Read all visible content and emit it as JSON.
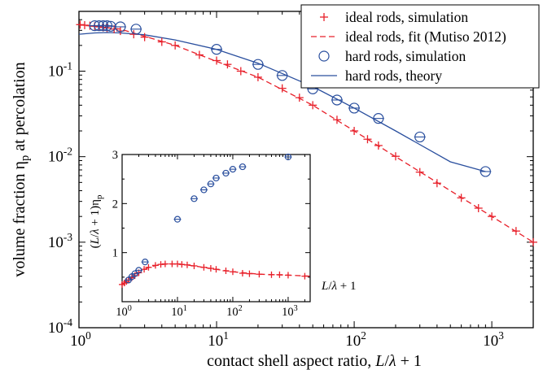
{
  "colors": {
    "ideal": "#e8202a",
    "hard": "#2a4f9e",
    "axis": "#000000"
  },
  "chart_data": [
    {
      "type": "scatter",
      "role": "main",
      "xscale": "log",
      "yscale": "log",
      "xlim": [
        1,
        2000
      ],
      "ylim": [
        0.0001,
        0.5
      ],
      "xlabel": "contact shell aspect ratio, L/λ + 1",
      "ylabel": "volume fraction ηp at percolation",
      "xticks": [
        {
          "value": 1,
          "base": "10",
          "exp": "0"
        },
        {
          "value": 10,
          "base": "10",
          "exp": "1"
        },
        {
          "value": 100,
          "base": "10",
          "exp": "2"
        },
        {
          "value": 1000,
          "base": "10",
          "exp": "3"
        }
      ],
      "yticks": [
        {
          "value": 0.0001,
          "base": "10",
          "exp": "-4"
        },
        {
          "value": 0.001,
          "base": "10",
          "exp": "-3"
        },
        {
          "value": 0.01,
          "base": "10",
          "exp": "-2"
        },
        {
          "value": 0.1,
          "base": "10",
          "exp": "-1"
        }
      ],
      "legend_position": "top-right",
      "series": [
        {
          "name": "ideal rods, simulation",
          "marker": "plus",
          "color": "#e8202a",
          "points": [
            [
              1.02,
              0.35
            ],
            [
              1.1,
              0.345
            ],
            [
              1.2,
              0.34
            ],
            [
              1.3,
              0.335
            ],
            [
              1.4,
              0.33
            ],
            [
              1.5,
              0.325
            ],
            [
              1.6,
              0.32
            ],
            [
              1.8,
              0.31
            ],
            [
              2.0,
              0.295
            ],
            [
              2.5,
              0.27
            ],
            [
              3.0,
              0.25
            ],
            [
              4.0,
              0.22
            ],
            [
              5.0,
              0.2
            ],
            [
              7.5,
              0.155
            ],
            [
              10,
              0.133
            ],
            [
              12,
              0.12
            ],
            [
              15,
              0.1
            ],
            [
              20,
              0.085
            ],
            [
              30,
              0.063
            ],
            [
              40,
              0.049
            ],
            [
              50,
              0.04
            ],
            [
              75,
              0.027
            ],
            [
              100,
              0.02
            ],
            [
              125,
              0.016
            ],
            [
              150,
              0.0135
            ],
            [
              200,
              0.0101
            ],
            [
              300,
              0.0066
            ],
            [
              400,
              0.0049
            ],
            [
              600,
              0.0033
            ],
            [
              800,
              0.0025
            ],
            [
              1000,
              0.002
            ],
            [
              1500,
              0.00135
            ],
            [
              2000,
              0.001
            ]
          ]
        },
        {
          "name": "ideal rods, fit (Mutiso 2012)",
          "line": "dashed",
          "color": "#e8202a",
          "points": [
            [
              1,
              0.35
            ],
            [
              2,
              0.31
            ],
            [
              5,
              0.2
            ],
            [
              10,
              0.13
            ],
            [
              20,
              0.085
            ],
            [
              50,
              0.04
            ],
            [
              100,
              0.02
            ],
            [
              200,
              0.01
            ],
            [
              500,
              0.004
            ],
            [
              1000,
              0.002
            ],
            [
              2000,
              0.001
            ]
          ]
        },
        {
          "name": "hard rods, simulation",
          "marker": "circle",
          "color": "#2a4f9e",
          "points": [
            [
              1.3,
              0.34
            ],
            [
              1.4,
              0.34
            ],
            [
              1.5,
              0.34
            ],
            [
              1.6,
              0.34
            ],
            [
              1.7,
              0.335
            ],
            [
              2.0,
              0.33
            ],
            [
              2.6,
              0.31
            ],
            [
              10,
              0.18
            ],
            [
              20,
              0.12
            ],
            [
              30,
              0.089
            ],
            [
              50,
              0.062
            ],
            [
              75,
              0.046
            ],
            [
              100,
              0.037
            ],
            [
              150,
              0.028
            ],
            [
              300,
              0.017
            ],
            [
              900,
              0.0067
            ]
          ]
        },
        {
          "name": "hard rods, theory",
          "line": "solid",
          "color": "#2a4f9e",
          "points": [
            [
              1,
              0.27
            ],
            [
              1.3,
              0.28
            ],
            [
              1.6,
              0.283
            ],
            [
              2,
              0.28
            ],
            [
              3,
              0.266
            ],
            [
              5,
              0.232
            ],
            [
              10,
              0.18
            ],
            [
              20,
              0.124
            ],
            [
              50,
              0.066
            ],
            [
              100,
              0.037
            ],
            [
              200,
              0.02
            ],
            [
              500,
              0.0087
            ],
            [
              900,
              0.0067
            ]
          ]
        }
      ]
    },
    {
      "type": "scatter",
      "role": "inset",
      "xscale": "log",
      "yscale": "linear",
      "xlim": [
        1,
        2500
      ],
      "ylim": [
        0,
        3
      ],
      "ylabel": "(L/λ + 1)ηp",
      "xlabel": "L/λ + 1",
      "xticks": [
        {
          "value": 1,
          "base": "10",
          "exp": "0"
        },
        {
          "value": 10,
          "base": "10",
          "exp": "1"
        },
        {
          "value": 100,
          "base": "10",
          "exp": "2"
        },
        {
          "value": 1000,
          "base": "10",
          "exp": "3"
        }
      ],
      "yticks": [
        {
          "value": 1,
          "label": "1"
        },
        {
          "value": 2,
          "label": "2"
        },
        {
          "value": 3,
          "label": "3"
        }
      ],
      "series": [
        {
          "name": "ideal rods",
          "marker": "plus",
          "color": "#e8202a",
          "points": [
            [
              1.0,
              0.35
            ],
            [
              1.1,
              0.38
            ],
            [
              1.2,
              0.41
            ],
            [
              1.3,
              0.44
            ],
            [
              1.5,
              0.49
            ],
            [
              1.7,
              0.53
            ],
            [
              2.0,
              0.59
            ],
            [
              2.5,
              0.66
            ],
            [
              3.0,
              0.7
            ],
            [
              4.0,
              0.74
            ],
            [
              5,
              0.76
            ],
            [
              6,
              0.77
            ],
            [
              8,
              0.77
            ],
            [
              10,
              0.77
            ],
            [
              12,
              0.76
            ],
            [
              15,
              0.75
            ],
            [
              20,
              0.73
            ],
            [
              30,
              0.7
            ],
            [
              40,
              0.68
            ],
            [
              50,
              0.66
            ],
            [
              75,
              0.63
            ],
            [
              100,
              0.61
            ],
            [
              150,
              0.58
            ],
            [
              200,
              0.57
            ],
            [
              300,
              0.56
            ],
            [
              500,
              0.55
            ],
            [
              700,
              0.55
            ],
            [
              1000,
              0.54
            ],
            [
              2000,
              0.52
            ]
          ]
        },
        {
          "name": "ideal rods fit",
          "line": "dashed",
          "color": "#e8202a",
          "points": [
            [
              1,
              0.35
            ],
            [
              1.5,
              0.49
            ],
            [
              2,
              0.59
            ],
            [
              3,
              0.7
            ],
            [
              5,
              0.76
            ],
            [
              8,
              0.77
            ],
            [
              12,
              0.76
            ],
            [
              20,
              0.73
            ],
            [
              50,
              0.66
            ],
            [
              100,
              0.61
            ],
            [
              300,
              0.56
            ],
            [
              1000,
              0.54
            ],
            [
              2500,
              0.52
            ]
          ]
        },
        {
          "name": "hard rods",
          "marker": "circle",
          "color": "#2a4f9e",
          "points": [
            [
              1.3,
              0.44
            ],
            [
              1.5,
              0.51
            ],
            [
              1.7,
              0.57
            ],
            [
              2.0,
              0.64
            ],
            [
              2.6,
              0.81
            ],
            [
              10,
              1.68
            ],
            [
              20,
              2.1
            ],
            [
              30,
              2.28
            ],
            [
              40,
              2.4
            ],
            [
              50,
              2.52
            ],
            [
              75,
              2.62
            ],
            [
              100,
              2.7
            ],
            [
              150,
              2.75
            ],
            [
              1000,
              2.95
            ]
          ]
        }
      ]
    }
  ]
}
